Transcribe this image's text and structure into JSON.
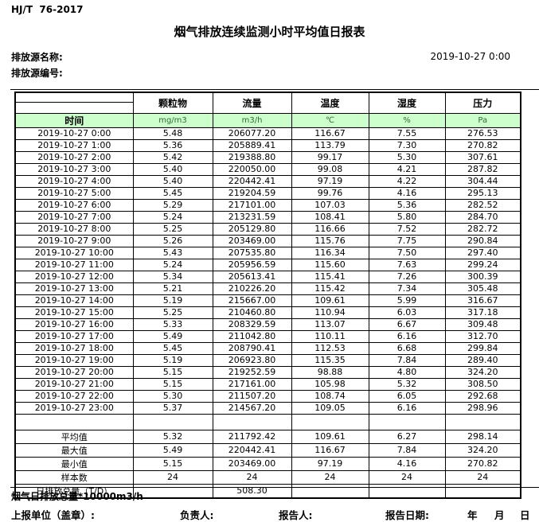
{
  "page": {
    "doc_code": "HJ/T  76-2017",
    "title": "烟气排放连续监测小时平均值日报表",
    "source_name_label": "排放源名称:",
    "source_code_label": "排放源编号:",
    "report_datetime": "2019-10-27 0:00"
  },
  "table": {
    "time_header": "时间",
    "columns": [
      {
        "name": "颗粒物",
        "unit": "mg/m3"
      },
      {
        "name": "流量",
        "unit": "m3/h"
      },
      {
        "name": "温度",
        "unit": "℃"
      },
      {
        "name": "湿度",
        "unit": "%"
      },
      {
        "name": "压力",
        "unit": "Pa"
      }
    ],
    "rows": [
      {
        "time": "2019-10-27 0:00",
        "values": [
          "5.48",
          "206077.20",
          "116.67",
          "7.55",
          "276.53"
        ]
      },
      {
        "time": "2019-10-27 1:00",
        "values": [
          "5.36",
          "205889.41",
          "113.79",
          "7.30",
          "270.82"
        ]
      },
      {
        "time": "2019-10-27 2:00",
        "values": [
          "5.42",
          "219388.80",
          "99.17",
          "5.30",
          "307.61"
        ]
      },
      {
        "time": "2019-10-27 3:00",
        "values": [
          "5.40",
          "220050.00",
          "99.08",
          "4.21",
          "287.82"
        ]
      },
      {
        "time": "2019-10-27 4:00",
        "values": [
          "5.40",
          "220442.41",
          "97.19",
          "4.22",
          "304.44"
        ]
      },
      {
        "time": "2019-10-27 5:00",
        "values": [
          "5.45",
          "219204.59",
          "99.76",
          "4.16",
          "295.13"
        ]
      },
      {
        "time": "2019-10-27 6:00",
        "values": [
          "5.29",
          "217101.00",
          "107.03",
          "5.36",
          "282.52"
        ]
      },
      {
        "time": "2019-10-27 7:00",
        "values": [
          "5.24",
          "213231.59",
          "108.41",
          "5.80",
          "284.70"
        ]
      },
      {
        "time": "2019-10-27 8:00",
        "values": [
          "5.25",
          "205129.80",
          "116.66",
          "7.52",
          "282.72"
        ]
      },
      {
        "time": "2019-10-27 9:00",
        "values": [
          "5.26",
          "203469.00",
          "115.76",
          "7.75",
          "290.84"
        ]
      },
      {
        "time": "2019-10-27 10:00",
        "values": [
          "5.43",
          "207535.80",
          "116.34",
          "7.50",
          "297.40"
        ]
      },
      {
        "time": "2019-10-27 11:00",
        "values": [
          "5.24",
          "205956.59",
          "115.60",
          "7.63",
          "299.24"
        ]
      },
      {
        "time": "2019-10-27 12:00",
        "values": [
          "5.34",
          "205613.41",
          "115.41",
          "7.26",
          "300.39"
        ]
      },
      {
        "time": "2019-10-27 13:00",
        "values": [
          "5.21",
          "210226.20",
          "115.42",
          "7.34",
          "305.48"
        ]
      },
      {
        "time": "2019-10-27 14:00",
        "values": [
          "5.19",
          "215667.00",
          "109.61",
          "5.99",
          "316.67"
        ]
      },
      {
        "time": "2019-10-27 15:00",
        "values": [
          "5.25",
          "210460.80",
          "110.94",
          "6.03",
          "317.18"
        ]
      },
      {
        "time": "2019-10-27 16:00",
        "values": [
          "5.33",
          "208329.59",
          "113.07",
          "6.67",
          "309.48"
        ]
      },
      {
        "time": "2019-10-27 17:00",
        "values": [
          "5.49",
          "211042.80",
          "110.11",
          "6.16",
          "312.70"
        ]
      },
      {
        "time": "2019-10-27 18:00",
        "values": [
          "5.45",
          "208790.41",
          "112.53",
          "6.68",
          "299.84"
        ]
      },
      {
        "time": "2019-10-27 19:00",
        "values": [
          "5.19",
          "206923.80",
          "115.35",
          "7.84",
          "289.40"
        ]
      },
      {
        "time": "2019-10-27 20:00",
        "values": [
          "5.15",
          "219252.59",
          "98.88",
          "4.80",
          "324.20"
        ]
      },
      {
        "time": "2019-10-27 21:00",
        "values": [
          "5.15",
          "217161.00",
          "105.98",
          "5.32",
          "308.50"
        ]
      },
      {
        "time": "2019-10-27 22:00",
        "values": [
          "5.30",
          "211507.20",
          "108.74",
          "6.05",
          "292.68"
        ]
      },
      {
        "time": "2019-10-27 23:00",
        "values": [
          "5.37",
          "214567.20",
          "109.05",
          "6.16",
          "298.96"
        ]
      }
    ],
    "summary_rows": [
      {
        "label": "平均值",
        "values": [
          "5.32",
          "211792.42",
          "109.61",
          "6.27",
          "298.14"
        ]
      },
      {
        "label": "最大值",
        "values": [
          "5.49",
          "220442.41",
          "116.67",
          "7.84",
          "324.20"
        ]
      },
      {
        "label": "最小值",
        "values": [
          "5.15",
          "203469.00",
          "97.19",
          "4.16",
          "270.82"
        ]
      },
      {
        "label": "样本数",
        "values": [
          "24",
          "24",
          "24",
          "24",
          "24"
        ]
      },
      {
        "label": "日排放总量（T/D）",
        "values": [
          "",
          "508.30",
          "",
          "",
          ""
        ]
      }
    ]
  },
  "footer": {
    "footnote": "烟气日排放总量*10000m3/h",
    "report_unit_label": "上报单位（盖章）:",
    "responsible_label": "负责人:",
    "reporter_label": "报告人:",
    "report_date_label": "报告日期:",
    "year_label": "年",
    "month_label": "月",
    "day_label": "日"
  },
  "colors": {
    "header_green": "#ccffcc",
    "unit_text": "#2f6b2f",
    "border": "#000000"
  }
}
